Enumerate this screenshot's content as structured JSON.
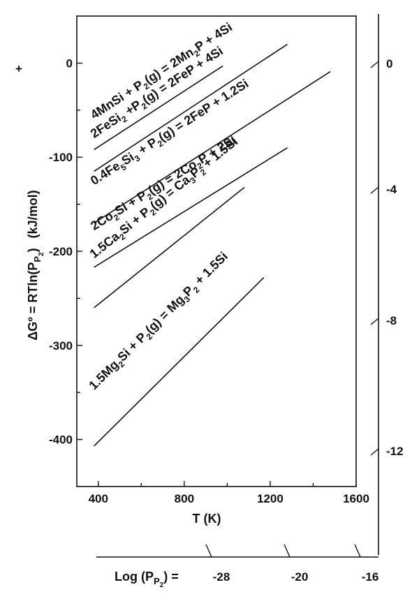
{
  "chart_data": {
    "type": "line",
    "xlabel": "T (K)",
    "ylabel": "ΔGº = RTln(P P2)   (kJ/mol)",
    "ylabel_parts": {
      "main": "ΔGº = RTln(P",
      "sub1": "P",
      "sub2": "2",
      "close": ")",
      "unit": "(kJ/mol)"
    },
    "sign_marker": "+",
    "xlim": [
      300,
      1600
    ],
    "ylim": [
      -450,
      50
    ],
    "x_ticks": [
      400,
      800,
      1200,
      1600
    ],
    "x_tick_labels": [
      "400",
      "800",
      "1200",
      "1600"
    ],
    "y_ticks": [
      0,
      -100,
      -200,
      -300,
      -400
    ],
    "y_tick_labels": [
      "0",
      "-100",
      "-200",
      "-300",
      "-400"
    ],
    "right_axis": {
      "labels": [
        "0",
        "-4",
        "-8",
        "-12"
      ],
      "values": [
        0,
        -4,
        -8,
        -12
      ]
    },
    "bottom_axis": {
      "title": "Log (P P2) =",
      "title_parts": {
        "main": "Log (P",
        "sub1": "P",
        "sub2": "2",
        "close": ") ="
      },
      "labels": [
        "-28",
        "-20",
        "-16"
      ],
      "values": [
        -28,
        -20,
        -16
      ]
    },
    "series": [
      {
        "name": "4MnSi + P2(g) = 2Mn2P + 4Si",
        "label_runs": [
          [
            "4MnSi + P",
            ""
          ],
          [
            "2",
            "s"
          ],
          [
            "(g) = 2Mn",
            ""
          ],
          [
            "2",
            "s"
          ],
          [
            "P + 4Si",
            ""
          ]
        ],
        "x": [
          380,
          980
        ],
        "y": [
          -92,
          -3
        ]
      },
      {
        "name": "2FeSi2 + P2(g) = 2FeP + 4Si",
        "label_runs": [
          [
            "2FeSi",
            ""
          ],
          [
            "2",
            "s"
          ],
          [
            " +P",
            ""
          ],
          [
            "2",
            "s"
          ],
          [
            "(g) = 2FeP + 4Si",
            ""
          ]
        ],
        "x": [
          380,
          1280
        ],
        "y": [
          -115,
          20
        ]
      },
      {
        "name": "0.4Fe5Si3 + P2(g) = 2FeP + 1.2Si",
        "label_runs": [
          [
            "0.4Fe",
            ""
          ],
          [
            "5",
            "s"
          ],
          [
            "Si",
            ""
          ],
          [
            "3",
            "s"
          ],
          [
            " + P",
            ""
          ],
          [
            "2",
            "s"
          ],
          [
            "(g) = 2FeP + 1.2Si",
            ""
          ]
        ],
        "x": [
          380,
          1480
        ],
        "y": [
          -170,
          -9
        ]
      },
      {
        "name": "2Co2Si + P2(g) = 2Co2P + 2Si",
        "label_runs": [
          [
            "2Co",
            ""
          ],
          [
            "2",
            "s"
          ],
          [
            "Si + P",
            ""
          ],
          [
            "2",
            "s"
          ],
          [
            "(g) = 2Co",
            ""
          ],
          [
            "2",
            "s"
          ],
          [
            "P + 2Si",
            ""
          ]
        ],
        "x": [
          380,
          1280
        ],
        "y": [
          -217,
          -90
        ]
      },
      {
        "name": "1.5Ca2Si + P2(g) = Ca3P2 + 1.5Si",
        "label_runs": [
          [
            "1.5Ca",
            ""
          ],
          [
            "2",
            "s"
          ],
          [
            "Si + P",
            ""
          ],
          [
            "2",
            "s"
          ],
          [
            "(g) = Ca",
            ""
          ],
          [
            "3",
            "s"
          ],
          [
            "P",
            ""
          ],
          [
            "2",
            "s"
          ],
          [
            " + 1.5Si",
            ""
          ]
        ],
        "x": [
          380,
          1080
        ],
        "y": [
          -260,
          -132
        ]
      },
      {
        "name": "1.5Mg2Si + P2(g) = Mg3P2 + 1.5Si",
        "label_runs": [
          [
            "1.5Mg",
            ""
          ],
          [
            "2",
            "s"
          ],
          [
            "Si + P",
            ""
          ],
          [
            "2",
            "s"
          ],
          [
            "(g) = Mg",
            ""
          ],
          [
            "3",
            "s"
          ],
          [
            "P",
            ""
          ],
          [
            "2",
            "s"
          ],
          [
            " + 1.5Si",
            ""
          ]
        ],
        "x": [
          380,
          1170
        ],
        "y": [
          -407,
          -228
        ]
      }
    ],
    "grid": false,
    "legend": "inline labels along lines"
  }
}
